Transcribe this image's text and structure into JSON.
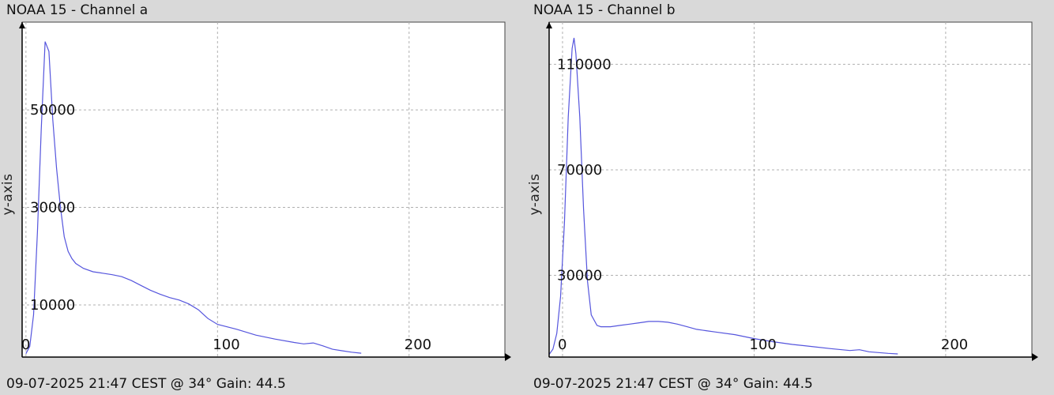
{
  "chart_data": [
    {
      "type": "line",
      "title": "NOAA 15 - Channel a",
      "ylabel": "y-axis",
      "footer": "09-07-2025 21:47 CEST @ 34° Gain: 44.5",
      "xlim": [
        -2,
        250
      ],
      "ylim": [
        -700,
        68000
      ],
      "x_ticks": [
        0,
        100,
        200
      ],
      "y_ticks": [
        10000,
        30000,
        50000
      ],
      "grid": true,
      "line_color": "#5555dd",
      "series": [
        {
          "x": [
            0,
            2,
            4,
            6,
            8,
            10,
            12,
            14,
            16,
            18,
            20,
            22,
            24,
            26,
            30,
            35,
            40,
            45,
            50,
            55,
            60,
            65,
            70,
            75,
            80,
            85,
            90,
            95,
            100,
            110,
            120,
            130,
            140,
            145,
            150,
            155,
            160,
            165,
            170,
            175
          ],
          "y": [
            0,
            1500,
            8000,
            25000,
            46000,
            64000,
            62000,
            48000,
            38000,
            30000,
            24000,
            21000,
            19500,
            18500,
            17500,
            16800,
            16500,
            16200,
            15800,
            15000,
            14000,
            13000,
            12200,
            11500,
            11000,
            10200,
            9000,
            7200,
            6000,
            5000,
            3800,
            3000,
            2300,
            2000,
            2200,
            1600,
            900,
            600,
            300,
            100
          ]
        }
      ]
    },
    {
      "type": "line",
      "title": "NOAA 15 - Channel b",
      "ylabel": "y-axis",
      "footer": "09-07-2025 21:47 CEST @ 34° Gain: 44.5",
      "xlim": [
        -7,
        245
      ],
      "ylim": [
        -1000,
        126000
      ],
      "x_ticks": [
        0,
        100,
        200
      ],
      "y_ticks": [
        30000,
        70000,
        110000
      ],
      "grid": true,
      "line_color": "#5555dd",
      "series": [
        {
          "x": [
            -7,
            -5,
            -3,
            -1,
            1,
            3,
            5,
            6,
            7,
            9,
            11,
            13,
            15,
            18,
            20,
            25,
            30,
            35,
            40,
            45,
            50,
            55,
            60,
            65,
            70,
            75,
            80,
            90,
            100,
            110,
            120,
            130,
            140,
            150,
            155,
            160,
            170,
            175
          ],
          "y": [
            0,
            2000,
            8000,
            22000,
            50000,
            90000,
            116000,
            120000,
            114000,
            90000,
            55000,
            28000,
            15000,
            11000,
            10500,
            10500,
            11000,
            11500,
            12000,
            12500,
            12500,
            12200,
            11500,
            10500,
            9500,
            9000,
            8500,
            7500,
            6000,
            4800,
            3800,
            3000,
            2200,
            1500,
            1800,
            1000,
            400,
            200
          ]
        }
      ]
    }
  ]
}
